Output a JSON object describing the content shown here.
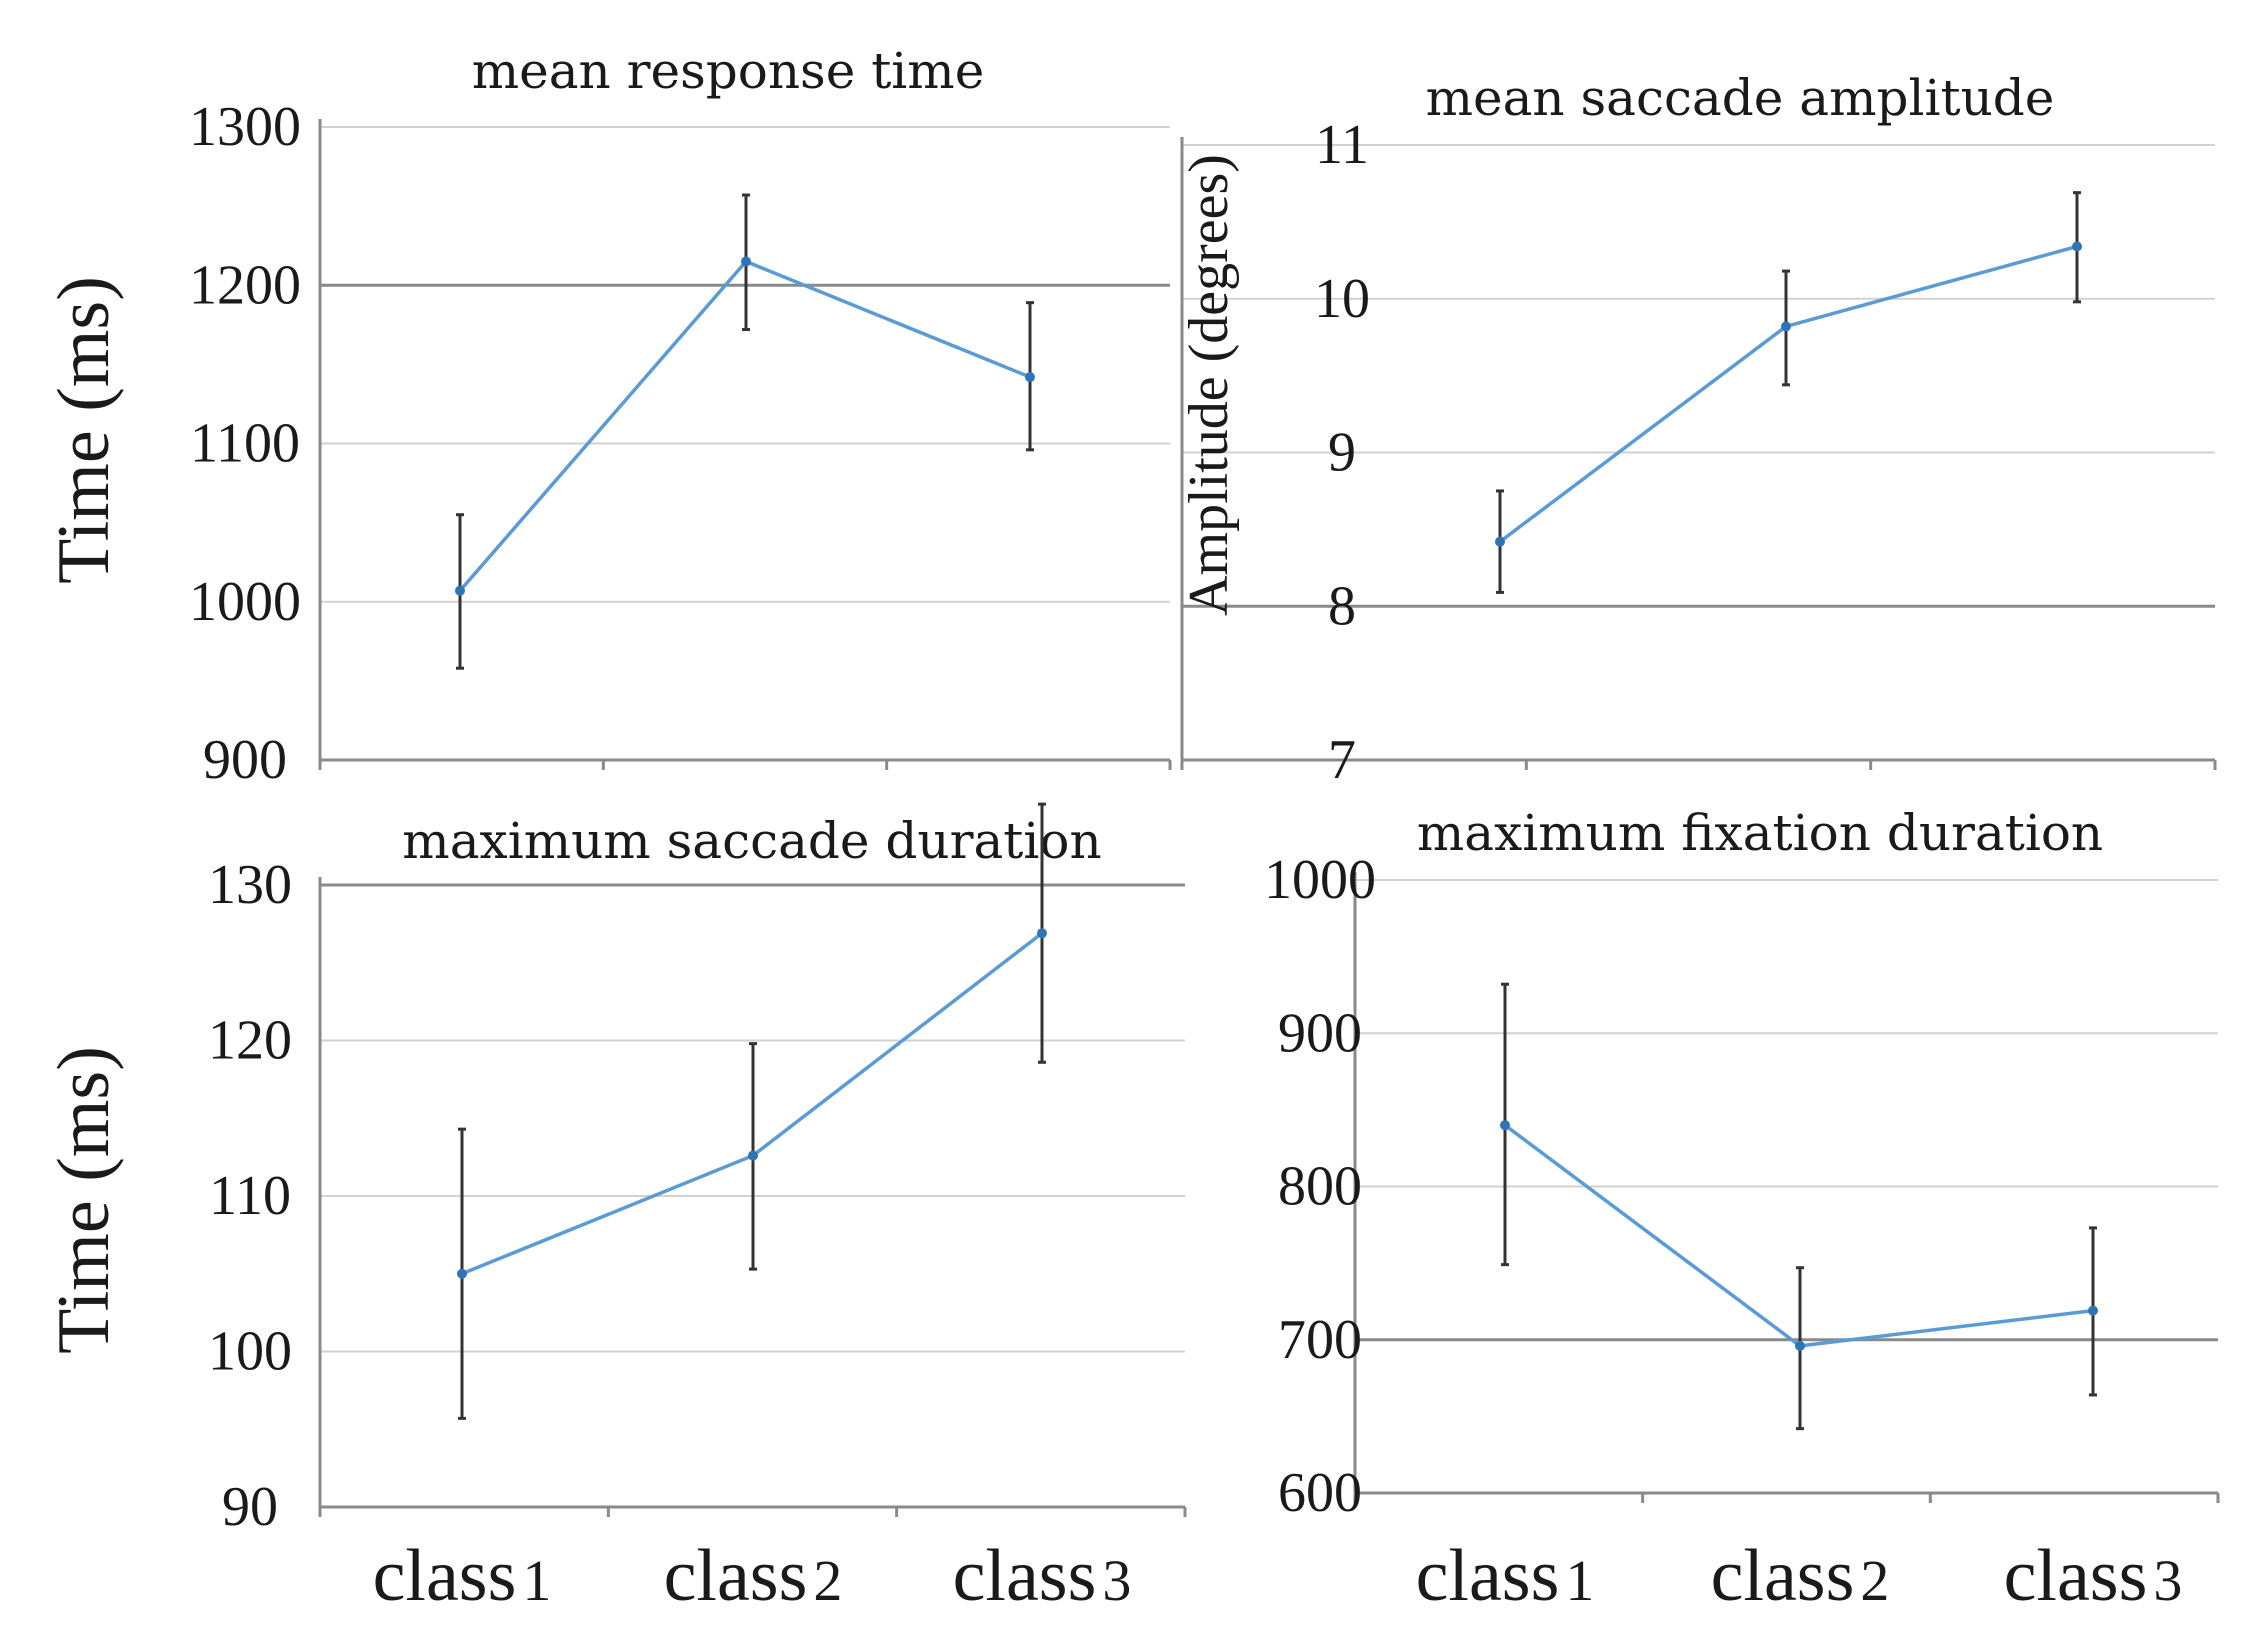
{
  "colors": {
    "series": "#5b9bd5",
    "point": "#2e75b6",
    "error_bar": "#333333"
  },
  "x_labels": [
    {
      "base": "class",
      "sub": "1"
    },
    {
      "base": "class",
      "sub": "2"
    },
    {
      "base": "class",
      "sub": "3"
    }
  ],
  "chart_data": [
    {
      "type": "line",
      "title": "mean response time",
      "ylabel": "Time (ms)",
      "xlabel": "",
      "categories": [
        "class1",
        "class2",
        "class3"
      ],
      "values": [
        1007,
        1215,
        1142
      ],
      "error": [
        [
          958,
          1055
        ],
        [
          1172,
          1257
        ],
        [
          1096,
          1189
        ]
      ],
      "ylim": [
        900,
        1300
      ],
      "yticks": [
        900,
        1000,
        1100,
        1200,
        1300
      ],
      "grid": true
    },
    {
      "type": "line",
      "title": "mean saccade amplitude",
      "ylabel": "Amplitude (degrees)",
      "xlabel": "",
      "categories": [
        "class1",
        "class2",
        "class3"
      ],
      "values": [
        8.42,
        9.82,
        10.34
      ],
      "error": [
        [
          8.09,
          8.75
        ],
        [
          9.44,
          10.18
        ],
        [
          9.98,
          10.69
        ]
      ],
      "ylim": [
        7,
        11
      ],
      "yticks": [
        7,
        8,
        9,
        10,
        11
      ],
      "grid": true
    },
    {
      "type": "line",
      "title": "maximum saccade duration",
      "ylabel": "Time (ms)",
      "xlabel": "",
      "categories": [
        "class1",
        "class2",
        "class3"
      ],
      "values": [
        105,
        112.6,
        126.9
      ],
      "error": [
        [
          95.7,
          114.3
        ],
        [
          105.3,
          119.8
        ],
        [
          118.6,
          135.2
        ]
      ],
      "ylim": [
        90,
        130
      ],
      "yticks": [
        90,
        100,
        110,
        120,
        130
      ],
      "grid": true
    },
    {
      "type": "line",
      "title": "maximum fixation duration",
      "ylabel": "",
      "xlabel": "",
      "categories": [
        "class1",
        "class2",
        "class3"
      ],
      "values": [
        840,
        696,
        719
      ],
      "error": [
        [
          749,
          932
        ],
        [
          642,
          747
        ],
        [
          664,
          773
        ]
      ],
      "ylim": [
        600,
        1000
      ],
      "yticks": [
        600,
        700,
        800,
        900,
        1000
      ],
      "grid": true
    }
  ]
}
